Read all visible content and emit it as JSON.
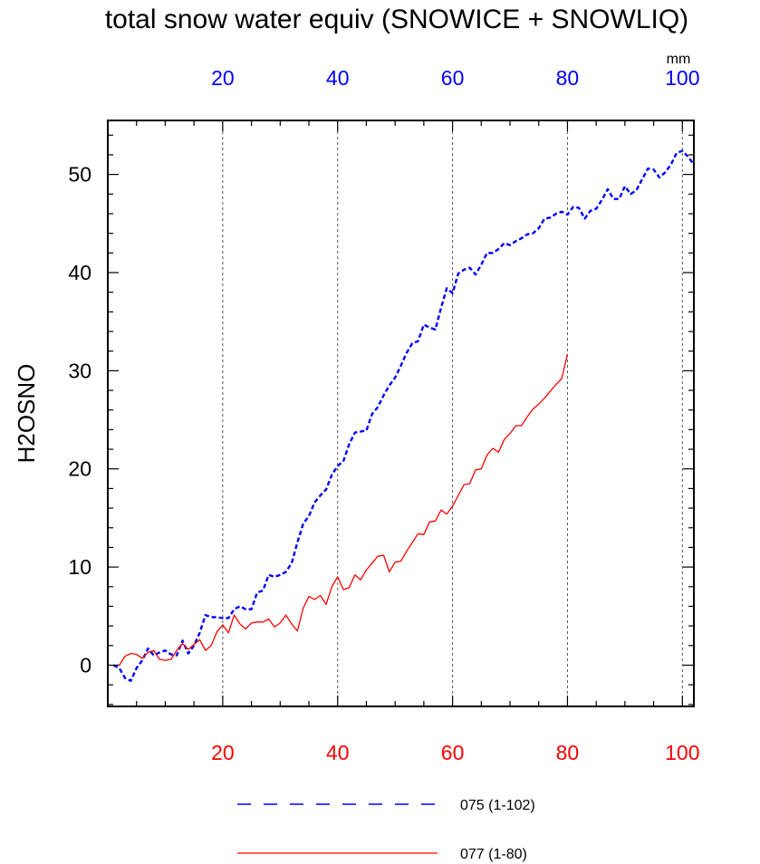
{
  "chart_data": {
    "type": "line",
    "title": "total snow water equiv (SNOWICE + SNOWLIQ)",
    "ylabel": "H2OSNO",
    "units": "mm",
    "xlim": [
      0,
      102
    ],
    "ylim": [
      -4.2,
      55.5
    ],
    "yticks": [
      0,
      10,
      20,
      30,
      40,
      50
    ],
    "top_axis": {
      "ticks": [
        20,
        40,
        60,
        80,
        100
      ],
      "color": "#0000ff"
    },
    "bottom_axis": {
      "ticks": [
        20,
        40,
        60,
        80,
        100
      ],
      "color": "#ff0000"
    },
    "grid": "dashed vertical lines at x = 20, 40, 60, 80, 100",
    "legend_position": "bottom",
    "series": [
      {
        "name": "075 (1-102)",
        "color": "#0000ff",
        "style": "dashed",
        "x": [
          1,
          2,
          3,
          4,
          5,
          6,
          7,
          8,
          9,
          10,
          11,
          12,
          13,
          14,
          15,
          16,
          17,
          18,
          19,
          20,
          21,
          22,
          23,
          24,
          25,
          26,
          27,
          28,
          29,
          30,
          31,
          32,
          33,
          34,
          35,
          36,
          37,
          38,
          39,
          40,
          41,
          42,
          43,
          44,
          45,
          46,
          47,
          48,
          49,
          50,
          51,
          52,
          53,
          54,
          55,
          56,
          57,
          58,
          59,
          60,
          61,
          62,
          63,
          64,
          65,
          66,
          67,
          68,
          69,
          70,
          71,
          72,
          73,
          74,
          75,
          76,
          77,
          78,
          79,
          80,
          81,
          82,
          83,
          84,
          85,
          86,
          87,
          88,
          89,
          90,
          91,
          92,
          93,
          94,
          95,
          96,
          97,
          98,
          99,
          100,
          101,
          102
        ],
        "y": [
          0,
          -0.3,
          -1.3,
          -1.6,
          -0.3,
          0.5,
          1.7,
          1.0,
          1.3,
          1.5,
          1.1,
          1.0,
          2.5,
          1.2,
          2.0,
          3.3,
          5.1,
          4.9,
          4.9,
          4.8,
          4.8,
          5.7,
          6.0,
          5.7,
          5.7,
          7.4,
          7.6,
          9.2,
          9.0,
          9.2,
          9.5,
          10.4,
          12.5,
          14.4,
          15.2,
          16.6,
          17.3,
          17.9,
          19.4,
          20.3,
          20.8,
          22.5,
          23.7,
          23.8,
          23.9,
          25.6,
          26.3,
          27.5,
          28.5,
          29.3,
          30.5,
          31.8,
          32.8,
          33.0,
          34.7,
          34.4,
          34.2,
          36.4,
          38.4,
          37.9,
          39.9,
          40.3,
          40.5,
          39.8,
          40.8,
          42.0,
          42.0,
          42.4,
          43.0,
          42.8,
          43.2,
          43.5,
          43.9,
          44.0,
          44.5,
          45.5,
          45.6,
          46.0,
          46.2,
          45.9,
          46.7,
          46.6,
          45.5,
          46.3,
          46.5,
          47.4,
          48.5,
          47.5,
          47.5,
          48.8,
          48.0,
          48.4,
          49.5,
          50.6,
          50.5,
          49.7,
          50.2,
          51.0,
          52.2,
          52.4,
          51.8,
          51.0
        ]
      },
      {
        "name": "077 (1-80)",
        "color": "#ff0000",
        "style": "solid",
        "x": [
          1,
          2,
          3,
          4,
          5,
          6,
          7,
          8,
          9,
          10,
          11,
          12,
          13,
          14,
          15,
          16,
          17,
          18,
          19,
          20,
          21,
          22,
          23,
          24,
          25,
          26,
          27,
          28,
          29,
          30,
          31,
          32,
          33,
          34,
          35,
          36,
          37,
          38,
          39,
          40,
          41,
          42,
          43,
          44,
          45,
          46,
          47,
          48,
          49,
          50,
          51,
          52,
          53,
          54,
          55,
          56,
          57,
          58,
          59,
          60,
          61,
          62,
          63,
          64,
          65,
          66,
          67,
          68,
          69,
          70,
          71,
          72,
          73,
          74,
          75,
          76,
          77,
          78,
          79,
          80
        ],
        "y": [
          0,
          0,
          0.9,
          1.2,
          1.1,
          0.7,
          1.3,
          1.5,
          0.6,
          0.5,
          0.6,
          1.5,
          2.2,
          1.6,
          2.1,
          2.6,
          1.5,
          2.0,
          3.4,
          4.1,
          3.3,
          5.1,
          4.2,
          3.7,
          4.3,
          4.4,
          4.4,
          4.7,
          3.9,
          4.3,
          5.1,
          4.2,
          3.5,
          5.8,
          7.0,
          6.7,
          7.1,
          6.2,
          8.0,
          9.0,
          7.7,
          7.9,
          9.2,
          8.7,
          9.7,
          10.4,
          11.1,
          11.2,
          9.5,
          10.5,
          10.6,
          11.6,
          12.5,
          13.4,
          13.3,
          14.6,
          14.7,
          15.8,
          15.4,
          16.2,
          17.3,
          18.4,
          18.5,
          19.9,
          20.0,
          21.4,
          22.1,
          21.7,
          23.0,
          23.6,
          24.4,
          24.4,
          25.3,
          26.1,
          26.6,
          27.2,
          27.9,
          28.6,
          29.2,
          31.7
        ]
      }
    ]
  }
}
